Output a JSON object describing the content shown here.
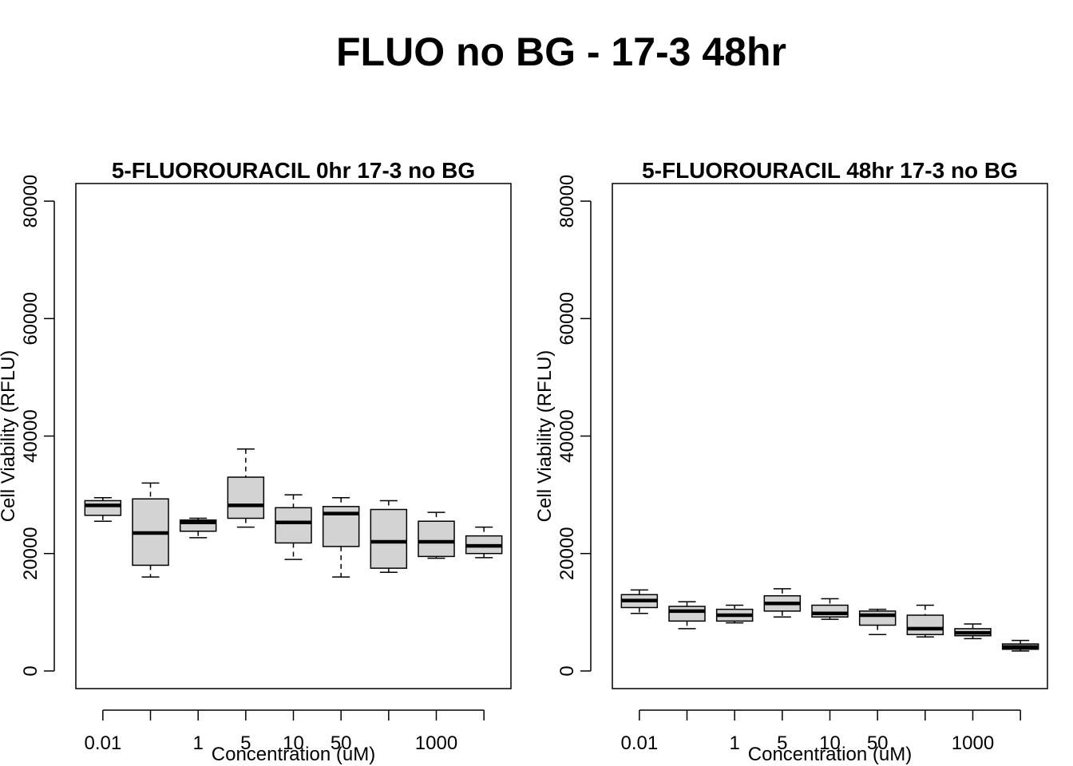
{
  "title": "FLUO no BG - 17-3 48hr",
  "chart_data": [
    {
      "type": "boxplot",
      "title": "5-FLUOROURACIL 0hr 17-3 no BG",
      "xlabel": "Concentration (uM)",
      "ylabel": "Cell Viability (RFLU)",
      "ylim": [
        -3000,
        83000
      ],
      "yticks": [
        "0",
        "20000",
        "40000",
        "60000",
        "80000"
      ],
      "categories": [
        "0.01",
        "",
        "1",
        "5",
        "10",
        "50",
        "",
        "1000",
        ""
      ],
      "boxes": [
        {
          "min": 25500,
          "q1": 26500,
          "median": 28200,
          "q3": 29000,
          "max": 29500
        },
        {
          "min": 16000,
          "q1": 18000,
          "median": 23500,
          "q3": 29300,
          "max": 32000
        },
        {
          "min": 22700,
          "q1": 23800,
          "median": 25300,
          "q3": 25700,
          "max": 26000
        },
        {
          "min": 24500,
          "q1": 26000,
          "median": 28200,
          "q3": 33000,
          "max": 37800
        },
        {
          "min": 19000,
          "q1": 21800,
          "median": 25300,
          "q3": 27800,
          "max": 30000
        },
        {
          "min": 16000,
          "q1": 21200,
          "median": 26800,
          "q3": 28000,
          "max": 29500
        },
        {
          "min": 16800,
          "q1": 17500,
          "median": 22000,
          "q3": 27500,
          "max": 29000
        },
        {
          "min": 19200,
          "q1": 19500,
          "median": 22000,
          "q3": 25500,
          "max": 27000
        },
        {
          "min": 19300,
          "q1": 20000,
          "median": 21300,
          "q3": 23000,
          "max": 24500
        }
      ]
    },
    {
      "type": "boxplot",
      "title": "5-FLUOROURACIL 48hr 17-3 no BG",
      "xlabel": "Concentration (uM)",
      "ylabel": "Cell Viability (RFLU)",
      "ylim": [
        -3000,
        83000
      ],
      "yticks": [
        "0",
        "20000",
        "40000",
        "60000",
        "80000"
      ],
      "categories": [
        "0.01",
        "",
        "1",
        "5",
        "10",
        "50",
        "",
        "1000",
        ""
      ],
      "boxes": [
        {
          "min": 9800,
          "q1": 10800,
          "median": 12000,
          "q3": 13000,
          "max": 13800
        },
        {
          "min": 7200,
          "q1": 8500,
          "median": 10200,
          "q3": 11000,
          "max": 11800
        },
        {
          "min": 8200,
          "q1": 8500,
          "median": 9500,
          "q3": 10500,
          "max": 11200
        },
        {
          "min": 9200,
          "q1": 10200,
          "median": 11500,
          "q3": 12800,
          "max": 14000
        },
        {
          "min": 8800,
          "q1": 9200,
          "median": 9800,
          "q3": 11200,
          "max": 12300
        },
        {
          "min": 6200,
          "q1": 7800,
          "median": 9500,
          "q3": 10200,
          "max": 10500
        },
        {
          "min": 5800,
          "q1": 6200,
          "median": 7200,
          "q3": 9500,
          "max": 11200
        },
        {
          "min": 5500,
          "q1": 6000,
          "median": 6500,
          "q3": 7200,
          "max": 8000
        },
        {
          "min": 3400,
          "q1": 3700,
          "median": 4100,
          "q3": 4600,
          "max": 5200
        }
      ]
    }
  ]
}
